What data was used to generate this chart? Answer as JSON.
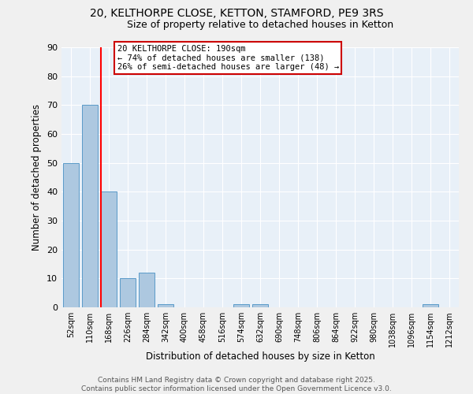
{
  "title_line1": "20, KELTHORPE CLOSE, KETTON, STAMFORD, PE9 3RS",
  "title_line2": "Size of property relative to detached houses in Ketton",
  "xlabel": "Distribution of detached houses by size in Ketton",
  "ylabel": "Number of detached properties",
  "bar_color": "#adc8e0",
  "bar_edge_color": "#5a9ac8",
  "categories": [
    "52sqm",
    "110sqm",
    "168sqm",
    "226sqm",
    "284sqm",
    "342sqm",
    "400sqm",
    "458sqm",
    "516sqm",
    "574sqm",
    "632sqm",
    "690sqm",
    "748sqm",
    "806sqm",
    "864sqm",
    "922sqm",
    "980sqm",
    "1038sqm",
    "1096sqm",
    "1154sqm",
    "1212sqm"
  ],
  "values": [
    50,
    70,
    40,
    10,
    12,
    1,
    0,
    0,
    0,
    1,
    1,
    0,
    0,
    0,
    0,
    0,
    0,
    0,
    0,
    1,
    0
  ],
  "red_line_index": 2,
  "annotation_text": "20 KELTHORPE CLOSE: 190sqm\n← 74% of detached houses are smaller (138)\n26% of semi-detached houses are larger (48) →",
  "annotation_box_color": "#ffffff",
  "annotation_border_color": "#cc0000",
  "ylim": [
    0,
    90
  ],
  "yticks": [
    0,
    10,
    20,
    30,
    40,
    50,
    60,
    70,
    80,
    90
  ],
  "background_color": "#e8f0f8",
  "grid_color": "#ffffff",
  "footer_text": "Contains HM Land Registry data © Crown copyright and database right 2025.\nContains public sector information licensed under the Open Government Licence v3.0.",
  "title_fontsize": 10,
  "subtitle_fontsize": 9,
  "footer_fontsize": 6.5
}
